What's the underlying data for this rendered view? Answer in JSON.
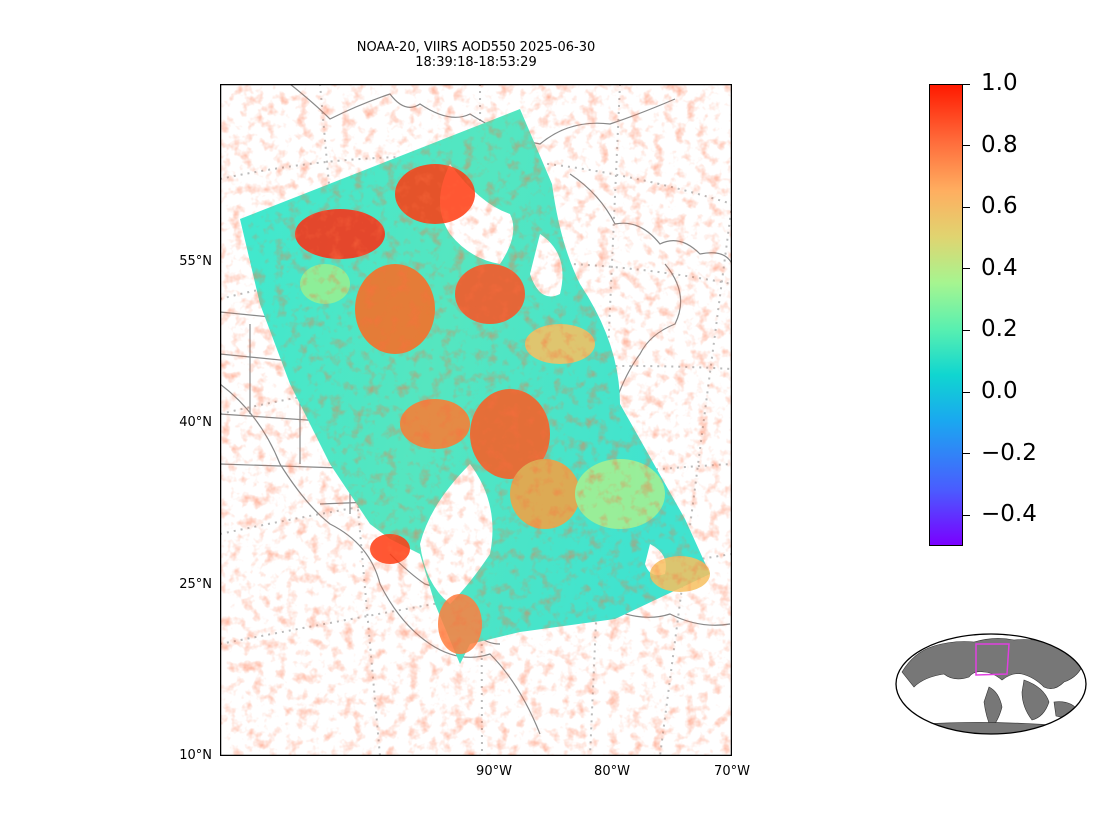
{
  "title": {
    "line1": "NOAA-20, VIIRS AOD550 2025-06-30",
    "line2": "18:39:18-18:53:29"
  },
  "map": {
    "projection": "lambert-conformal",
    "lat_labels": [
      "55°N",
      "40°N",
      "25°N",
      "10°N"
    ],
    "lon_labels": [
      "90°W",
      "80°W",
      "70°W"
    ],
    "gridlines": "dotted",
    "coastline_color": "#808080",
    "colormap": "rainbow",
    "color_range": [
      -0.5,
      1.0
    ]
  },
  "colorbar": {
    "ticks": [
      "1.0",
      "0.8",
      "0.6",
      "0.4",
      "0.2",
      "0.0",
      "−0.2",
      "−0.4"
    ],
    "tick_values": [
      1.0,
      0.8,
      0.6,
      0.4,
      0.2,
      0.0,
      -0.2,
      -0.4
    ],
    "vmin": -0.5,
    "vmax": 1.0
  },
  "inset": {
    "land_color": "#777777",
    "box_color": "#e040e0"
  }
}
